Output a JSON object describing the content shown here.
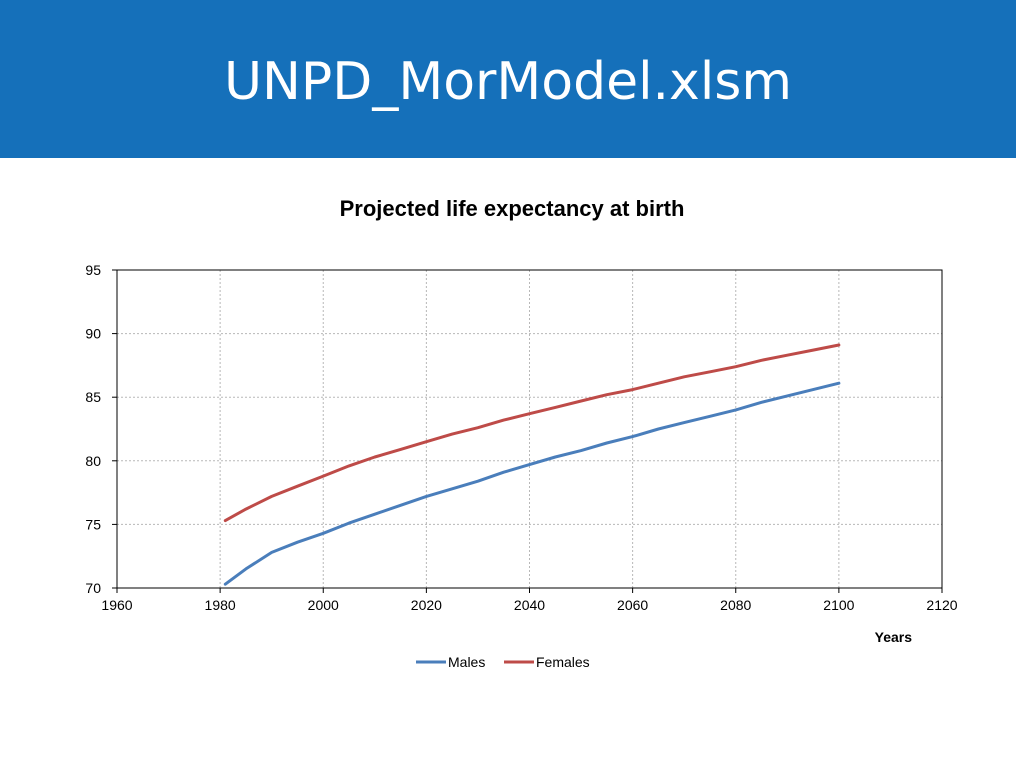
{
  "slide": {
    "title": "UNPD_MorModel.xlsm"
  },
  "chart_data": {
    "type": "line",
    "title": "Projected life expectancy at birth",
    "xlabel": "Years",
    "ylabel": "",
    "xlim": [
      1960,
      2120
    ],
    "ylim": [
      70,
      95
    ],
    "xticks": [
      1960,
      1980,
      2000,
      2020,
      2040,
      2060,
      2080,
      2100,
      2120
    ],
    "yticks": [
      70,
      75,
      80,
      85,
      90,
      95
    ],
    "grid": true,
    "legend_position": "bottom",
    "x": [
      1981,
      1985,
      1990,
      1995,
      2000,
      2005,
      2010,
      2015,
      2020,
      2025,
      2030,
      2035,
      2040,
      2045,
      2050,
      2055,
      2060,
      2065,
      2070,
      2075,
      2080,
      2085,
      2090,
      2095,
      2100
    ],
    "series": [
      {
        "name": "Males",
        "color": "#4A7EBB",
        "values": [
          70.3,
          71.5,
          72.8,
          73.6,
          74.3,
          75.1,
          75.8,
          76.5,
          77.2,
          77.8,
          78.4,
          79.1,
          79.7,
          80.3,
          80.8,
          81.4,
          81.9,
          82.5,
          83.0,
          83.5,
          84.0,
          84.6,
          85.1,
          85.6,
          86.1
        ]
      },
      {
        "name": "Females",
        "color": "#BE4B48",
        "values": [
          75.3,
          76.2,
          77.2,
          78.0,
          78.8,
          79.6,
          80.3,
          80.9,
          81.5,
          82.1,
          82.6,
          83.2,
          83.7,
          84.2,
          84.7,
          85.2,
          85.6,
          86.1,
          86.6,
          87.0,
          87.4,
          87.9,
          88.3,
          88.7,
          89.1
        ]
      }
    ]
  }
}
